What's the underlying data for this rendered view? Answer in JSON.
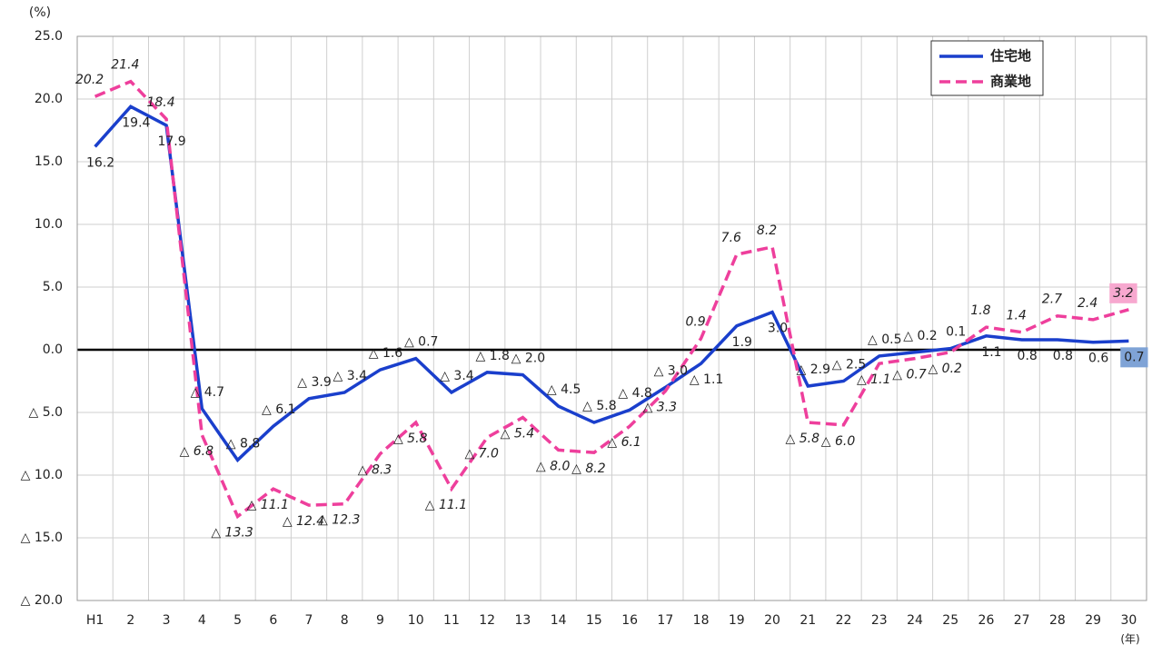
{
  "chart_data": {
    "type": "line",
    "y_unit": "(%)",
    "x_unit": "(年)",
    "categories": [
      "H1",
      "2",
      "3",
      "4",
      "5",
      "6",
      "7",
      "8",
      "9",
      "10",
      "11",
      "12",
      "13",
      "14",
      "15",
      "16",
      "17",
      "18",
      "19",
      "20",
      "21",
      "22",
      "23",
      "24",
      "25",
      "26",
      "27",
      "28",
      "29",
      "30"
    ],
    "series": [
      {
        "name": "住宅地",
        "color": "#1a3fcc",
        "dash": false,
        "values": [
          16.2,
          19.4,
          17.9,
          -4.7,
          -8.8,
          -6.1,
          -3.9,
          -3.4,
          -1.6,
          -0.7,
          -3.4,
          -1.8,
          -2.0,
          -4.5,
          -5.8,
          -4.8,
          -3.0,
          -1.1,
          1.9,
          3.0,
          -2.9,
          -2.5,
          -0.5,
          -0.2,
          0.1,
          1.1,
          0.8,
          0.8,
          0.6,
          0.7
        ],
        "value_labels": [
          "16.2",
          "19.4",
          "17.9",
          "△ 4.7",
          "△ 8.8",
          "△ 6.1",
          "△ 3.9",
          "△ 3.4",
          "△ 1.6",
          "△ 0.7",
          "△ 3.4",
          "△ 1.8",
          "△ 2.0",
          "△ 4.5",
          "△ 5.8",
          "△ 4.8",
          "△ 3.0",
          "△ 1.1",
          "1.9",
          "3.0",
          "△ 2.9",
          "△ 2.5",
          "△ 0.5",
          "△ 0.2",
          "0.1",
          "1.1",
          "0.8",
          "0.8",
          "0.6",
          "0.7"
        ]
      },
      {
        "name": "商業地",
        "color": "#ee3f9c",
        "dash": true,
        "values": [
          20.2,
          21.4,
          18.4,
          -6.8,
          -13.3,
          -11.1,
          -12.4,
          -12.3,
          -8.3,
          -5.8,
          -11.1,
          -7.0,
          -5.4,
          -8.0,
          -8.2,
          -6.1,
          -3.3,
          0.9,
          7.6,
          8.2,
          -5.8,
          -6.0,
          -1.1,
          -0.7,
          -0.2,
          1.8,
          1.4,
          2.7,
          2.4,
          3.2
        ],
        "value_labels": [
          "20.2",
          "21.4",
          "18.4",
          "△ 6.8",
          "△ 13.3",
          "△ 11.1",
          "△ 12.4",
          "△ 12.3",
          "△ 8.3",
          "△ 5.8",
          "△ 11.1",
          "△ 7.0",
          "△ 5.4",
          "△ 8.0",
          "△ 8.2",
          "△ 6.1",
          "△ 3.3",
          "0.9",
          "7.6",
          "8.2",
          "△ 5.8",
          "△ 6.0",
          "△ 1.1",
          "△ 0.7",
          "△ 0.2",
          "1.8",
          "1.4",
          "2.7",
          "2.4",
          "3.2"
        ]
      }
    ],
    "ylim": [
      -20,
      25
    ],
    "yticks": [
      {
        "value": 25,
        "label": "25.0"
      },
      {
        "value": 20,
        "label": "20.0"
      },
      {
        "value": 15,
        "label": "15.0"
      },
      {
        "value": 10,
        "label": "10.0"
      },
      {
        "value": 5,
        "label": "5.0"
      },
      {
        "value": 0,
        "label": "0.0"
      },
      {
        "value": -5,
        "label": "△ 5.0"
      },
      {
        "value": -10,
        "label": "△ 10.0"
      },
      {
        "value": -15,
        "label": "△ 15.0"
      },
      {
        "value": -20,
        "label": "△ 20.0"
      }
    ],
    "grid": true,
    "legend": "upper right"
  }
}
